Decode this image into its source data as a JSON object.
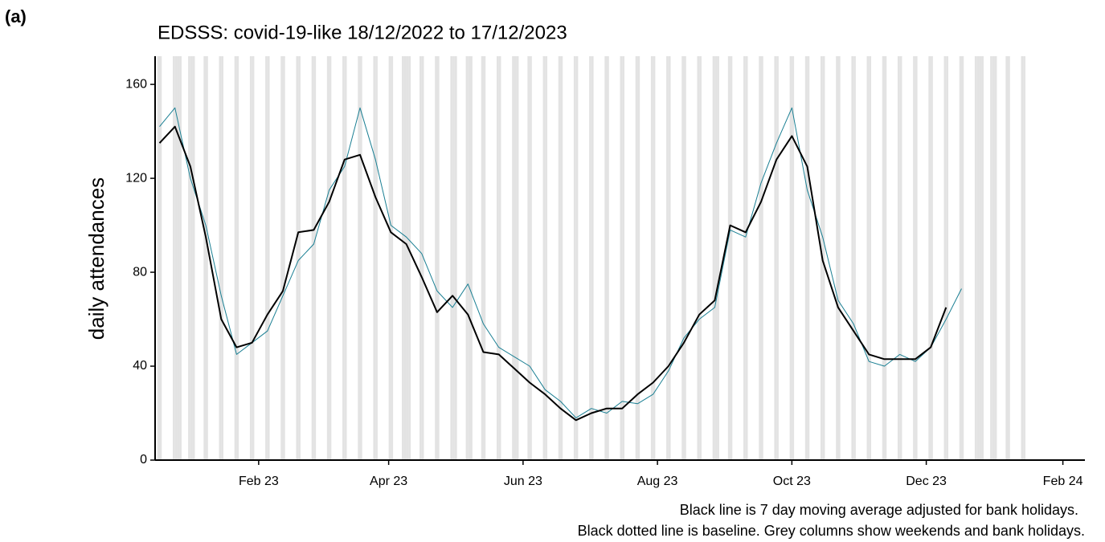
{
  "panel_label": "(a)",
  "chart_data": {
    "type": "line",
    "title": "EDSSS: covid-19-like 18/12/2022 to 17/12/2023",
    "y_label": "daily attendances",
    "notes": [
      "Black line is 7 day moving average adjusted for bank holidays.",
      "Black dotted line is baseline. Grey columns show weekends and bank holidays."
    ],
    "x": [
      "2022-12-18",
      "2022-12-25",
      "2023-01-01",
      "2023-01-08",
      "2023-01-15",
      "2023-01-22",
      "2023-01-29",
      "2023-02-05",
      "2023-02-12",
      "2023-02-19",
      "2023-02-26",
      "2023-03-05",
      "2023-03-12",
      "2023-03-19",
      "2023-03-26",
      "2023-04-02",
      "2023-04-09",
      "2023-04-16",
      "2023-04-23",
      "2023-04-30",
      "2023-05-07",
      "2023-05-14",
      "2023-05-21",
      "2023-05-28",
      "2023-06-04",
      "2023-06-11",
      "2023-06-18",
      "2023-06-25",
      "2023-07-02",
      "2023-07-09",
      "2023-07-16",
      "2023-07-23",
      "2023-07-30",
      "2023-08-06",
      "2023-08-13",
      "2023-08-20",
      "2023-08-27",
      "2023-09-03",
      "2023-09-10",
      "2023-09-17",
      "2023-09-24",
      "2023-10-01",
      "2023-10-08",
      "2023-10-15",
      "2023-10-22",
      "2023-10-29",
      "2023-11-05",
      "2023-11-12",
      "2023-11-19",
      "2023-11-26",
      "2023-12-03",
      "2023-12-10",
      "2023-12-17"
    ],
    "series": [
      {
        "color": "#1a7f93",
        "width": 1,
        "values": [
          142,
          150,
          120,
          100,
          70,
          45,
          50,
          55,
          70,
          85,
          92,
          115,
          125,
          150,
          128,
          100,
          95,
          88,
          72,
          65,
          75,
          58,
          48,
          44,
          40,
          30,
          25,
          18,
          22,
          20,
          25,
          24,
          28,
          38,
          52,
          60,
          65,
          98,
          95,
          118,
          135,
          150,
          115,
          95,
          68,
          58,
          42,
          40,
          45,
          42,
          48,
          60,
          73
        ]
      },
      {
        "color": "#000000",
        "width": 2,
        "values": [
          135,
          142,
          125,
          95,
          60,
          48,
          50,
          62,
          72,
          97,
          98,
          110,
          128,
          130,
          112,
          97,
          92,
          78,
          63,
          70,
          62,
          46,
          45,
          39,
          33,
          28,
          22,
          17,
          20,
          22,
          22,
          28,
          33,
          40,
          50,
          62,
          68,
          100,
          97,
          110,
          128,
          138,
          125,
          85,
          65,
          55,
          45,
          43,
          43,
          43,
          48,
          65,
          null
        ]
      }
    ],
    "xlim": [
      "2022-12-16",
      "2024-02-11"
    ],
    "xticks": [
      {
        "value": "2023-02-01",
        "label": "Feb 23"
      },
      {
        "value": "2023-04-01",
        "label": "Apr 23"
      },
      {
        "value": "2023-06-01",
        "label": "Jun 23"
      },
      {
        "value": "2023-08-01",
        "label": "Aug 23"
      },
      {
        "value": "2023-10-01",
        "label": "Oct 23"
      },
      {
        "value": "2023-12-01",
        "label": "Dec 23"
      },
      {
        "value": "2024-02-01",
        "label": "Feb 24"
      }
    ],
    "ylim": [
      0,
      172
    ],
    "yticks": [
      0,
      40,
      80,
      120,
      160
    ],
    "weekend_shading": true,
    "shading_end": "2024-01-14",
    "bank_holidays": [
      "2022-12-26",
      "2022-12-27",
      "2023-01-02",
      "2023-04-07",
      "2023-04-10",
      "2023-05-01",
      "2023-05-08",
      "2023-05-29",
      "2023-08-28",
      "2023-12-25",
      "2023-12-26",
      "2024-01-01"
    ],
    "shading_color": "#e3e3e3"
  }
}
